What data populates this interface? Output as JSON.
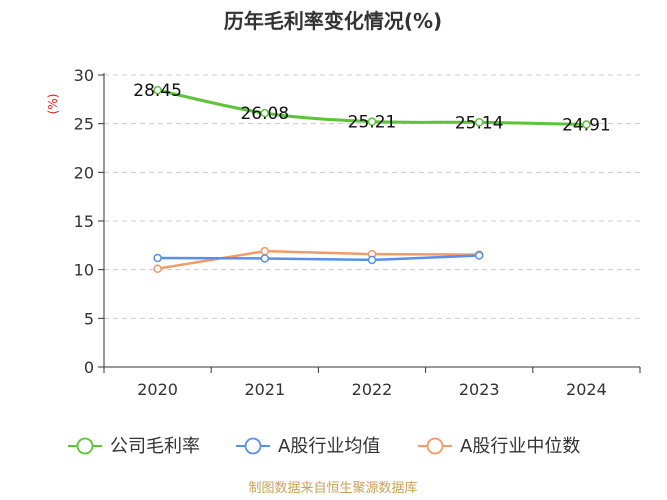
{
  "chart_data": {
    "type": "line",
    "title": "历年毛利率变化情况(%)",
    "ylabel": "(%)",
    "xlabel": "",
    "categories": [
      "2020",
      "2021",
      "2022",
      "2023",
      "2024"
    ],
    "ylim": [
      0,
      30
    ],
    "yticks": [
      "0",
      "5",
      "10",
      "15",
      "20",
      "25",
      "30"
    ],
    "grid": true,
    "legend_position": "bottom",
    "series": [
      {
        "name": "公司毛利率",
        "color": "#5cc33a",
        "values": [
          28.45,
          26.08,
          25.21,
          25.14,
          24.91
        ],
        "labels": [
          "28.45",
          "26.08",
          "25.21",
          "25.14",
          "24.91"
        ]
      },
      {
        "name": "A股行业均值",
        "color": "#5b8ee6",
        "values": [
          11.2,
          11.15,
          11.0,
          11.45,
          null
        ]
      },
      {
        "name": "A股行业中位数",
        "color": "#f39a6a",
        "values": [
          10.1,
          11.9,
          11.6,
          11.55,
          null
        ]
      }
    ]
  },
  "footer": {
    "source": "制图数据来自恒生聚源数据库"
  }
}
